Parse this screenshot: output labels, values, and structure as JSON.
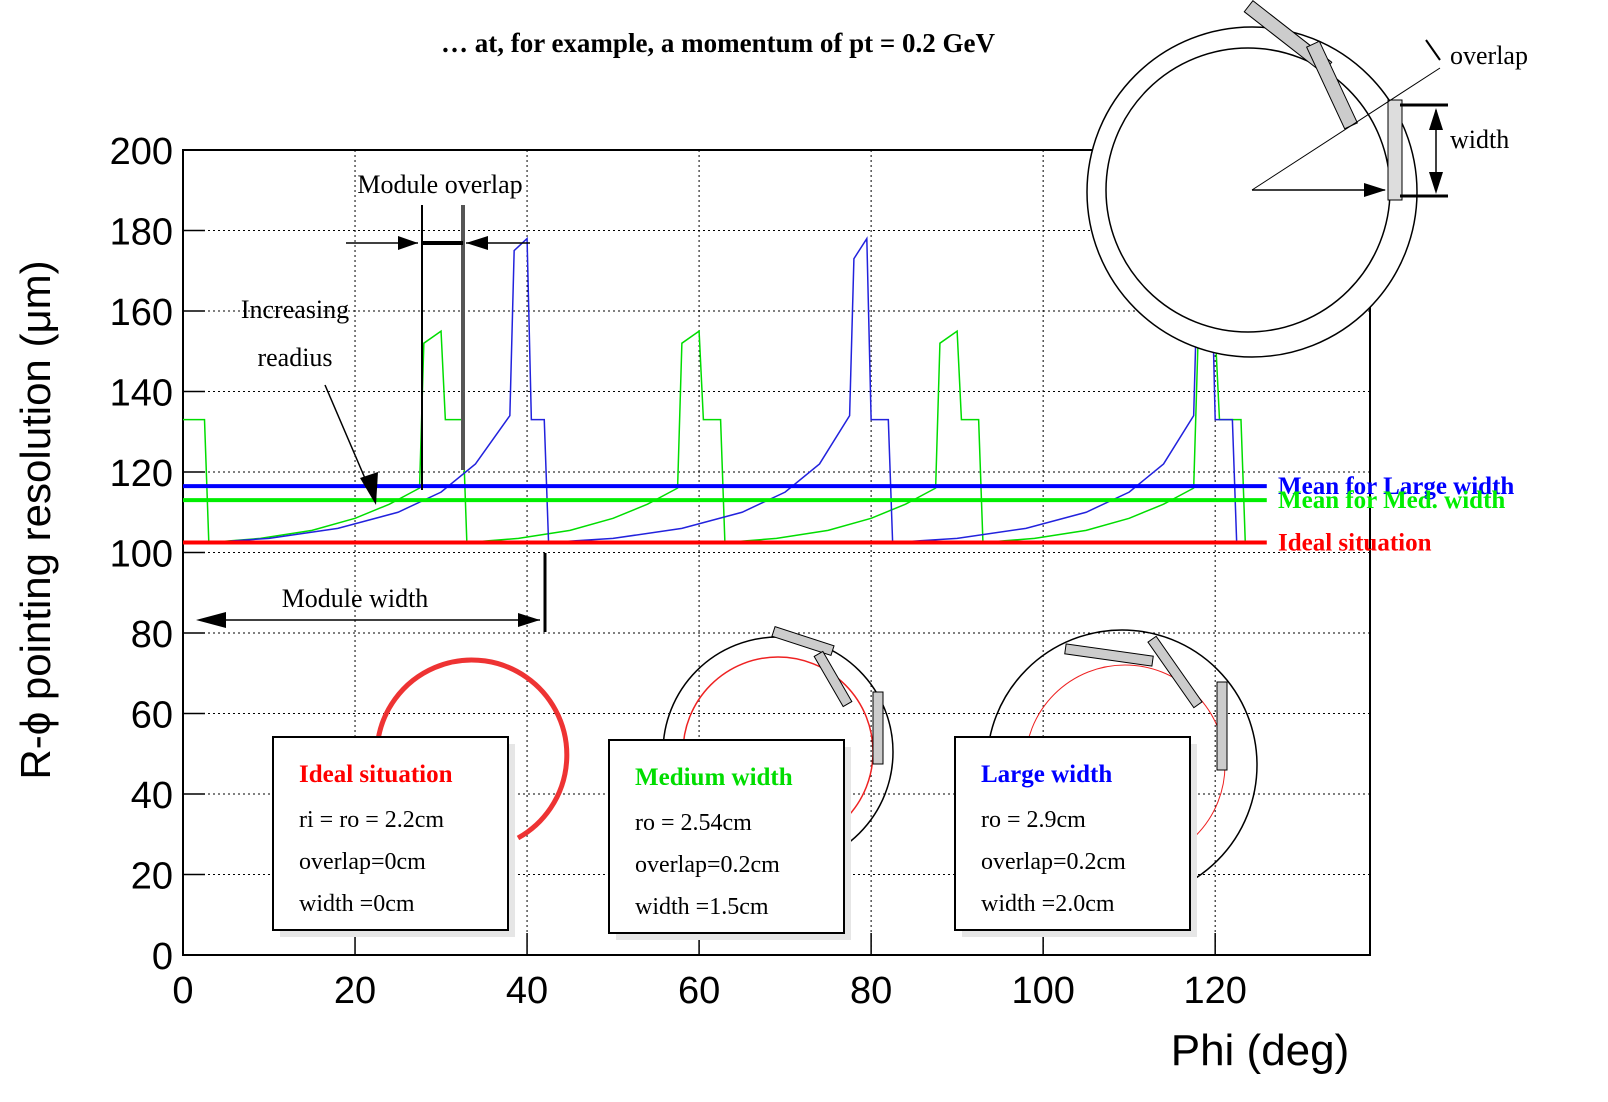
{
  "chart_data": {
    "type": "line",
    "title": "… at, for example, a momentum of  pt = 0.2 GeV",
    "x_label": "Phi (deg)",
    "y_label": "R-ϕ pointing resolution (μm)",
    "xlim": [
      0,
      138
    ],
    "ylim": [
      0,
      200
    ],
    "xticks": [
      0,
      20,
      40,
      60,
      80,
      100,
      120
    ],
    "yticks": [
      0,
      20,
      40,
      60,
      80,
      100,
      120,
      140,
      160,
      180,
      200
    ],
    "grid": true,
    "series": [
      {
        "color": "#00dd00",
        "x": [
          0,
          2.5,
          3,
          9,
          15,
          20,
          24,
          27.5,
          28,
          30,
          30.5,
          32.5,
          33,
          39,
          45,
          50,
          54,
          57.5,
          58,
          60,
          60.5,
          62.5,
          63,
          69,
          75,
          80,
          84,
          87.5,
          88,
          90,
          90.5,
          92.5,
          93,
          99,
          105,
          110,
          114,
          117.5,
          118,
          120,
          120.5,
          123,
          123.5
        ],
        "values": [
          133,
          133,
          102.5,
          103.5,
          105.5,
          108.5,
          112,
          116,
          152,
          155,
          133,
          133,
          102.5,
          103.5,
          105.5,
          108.5,
          112,
          116,
          152,
          155,
          133,
          133,
          102.5,
          103.5,
          105.5,
          108.5,
          112,
          116,
          152,
          155,
          133,
          133,
          102.5,
          103.5,
          105.5,
          108.5,
          112,
          116,
          152,
          155,
          133,
          133,
          102.5
        ]
      },
      {
        "color": "#2222dd",
        "x": [
          3,
          10,
          18,
          25,
          30,
          34,
          38,
          38.5,
          40,
          40.5,
          42,
          42.5,
          50,
          58,
          65,
          70,
          74,
          77.5,
          78,
          79.5,
          80,
          82,
          82.5,
          90,
          98,
          105,
          110,
          114,
          117.5,
          118,
          119.5,
          120,
          122,
          122.5
        ],
        "values": [
          102.5,
          103.5,
          106,
          110,
          115,
          122,
          134,
          175,
          178,
          133,
          133,
          102.5,
          103.5,
          106,
          110,
          115,
          122,
          134,
          173,
          178,
          133,
          133,
          102.5,
          103.5,
          106,
          110,
          115,
          122,
          134,
          173,
          178,
          133,
          133,
          102.5
        ]
      },
      {
        "name": "Mean for Large width",
        "color": "#0000ff",
        "x": [
          0,
          126
        ],
        "values": [
          116.5,
          116.5
        ]
      },
      {
        "name": "Mean for Med. width",
        "color": "#00ee00",
        "x": [
          0,
          126
        ],
        "values": [
          113,
          113
        ]
      },
      {
        "name": "Ideal situation",
        "color": "#ff0000",
        "x": [
          0,
          126
        ],
        "values": [
          102.5,
          102.5
        ]
      }
    ],
    "annotations": {
      "module_overlap": "Module overlap",
      "increasing_radius": [
        "Increasing",
        "readius"
      ],
      "module_width": "Module width",
      "overlap": "overlap",
      "width": "width"
    },
    "boxes": [
      {
        "title": "Ideal situation",
        "lines": [
          "ri = ro = 2.2cm",
          "overlap=0cm",
          "width =0cm"
        ]
      },
      {
        "title": "Medium width",
        "lines": [
          "ro = 2.54cm",
          "overlap=0.2cm",
          "width =1.5cm"
        ]
      },
      {
        "title": "Large width",
        "lines": [
          "ro = 2.9cm",
          "overlap=0.2cm",
          "width =2.0cm"
        ]
      }
    ]
  }
}
